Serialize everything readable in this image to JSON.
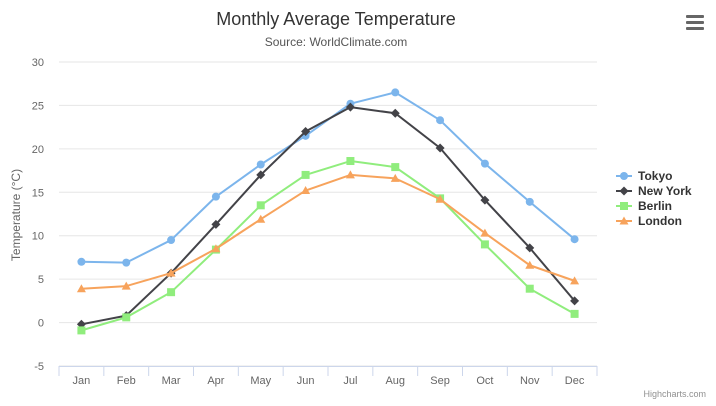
{
  "chart_data": {
    "type": "line",
    "title": "Monthly Average Temperature",
    "subtitle": "Source: WorldClimate.com",
    "xlabel": "",
    "ylabel": "Temperature (°C)",
    "ylim": [
      -5,
      30
    ],
    "yticks": [
      -5,
      0,
      5,
      10,
      15,
      20,
      25,
      30
    ],
    "grid": true,
    "legend": "right",
    "categories": [
      "Jan",
      "Feb",
      "Mar",
      "Apr",
      "May",
      "Jun",
      "Jul",
      "Aug",
      "Sep",
      "Oct",
      "Nov",
      "Dec"
    ],
    "series": [
      {
        "name": "Tokyo",
        "color": "#7cb5ec",
        "marker": "circle",
        "values": [
          7.0,
          6.9,
          9.5,
          14.5,
          18.2,
          21.5,
          25.2,
          26.5,
          23.3,
          18.3,
          13.9,
          9.6
        ]
      },
      {
        "name": "New York",
        "color": "#434348",
        "marker": "diamond",
        "values": [
          -0.2,
          0.8,
          5.7,
          11.3,
          17.0,
          22.0,
          24.8,
          24.1,
          20.1,
          14.1,
          8.6,
          2.5
        ]
      },
      {
        "name": "Berlin",
        "color": "#90ed7d",
        "marker": "square",
        "values": [
          -0.9,
          0.6,
          3.5,
          8.4,
          13.5,
          17.0,
          18.6,
          17.9,
          14.3,
          9.0,
          3.9,
          1.0
        ]
      },
      {
        "name": "London",
        "color": "#f7a35c",
        "marker": "triangle",
        "values": [
          3.9,
          4.2,
          5.7,
          8.5,
          11.9,
          15.2,
          17.0,
          16.6,
          14.2,
          10.3,
          6.6,
          4.8
        ]
      }
    ]
  },
  "menu": {
    "icon": "hamburger-menu-icon"
  },
  "credits": "Highcharts.com"
}
